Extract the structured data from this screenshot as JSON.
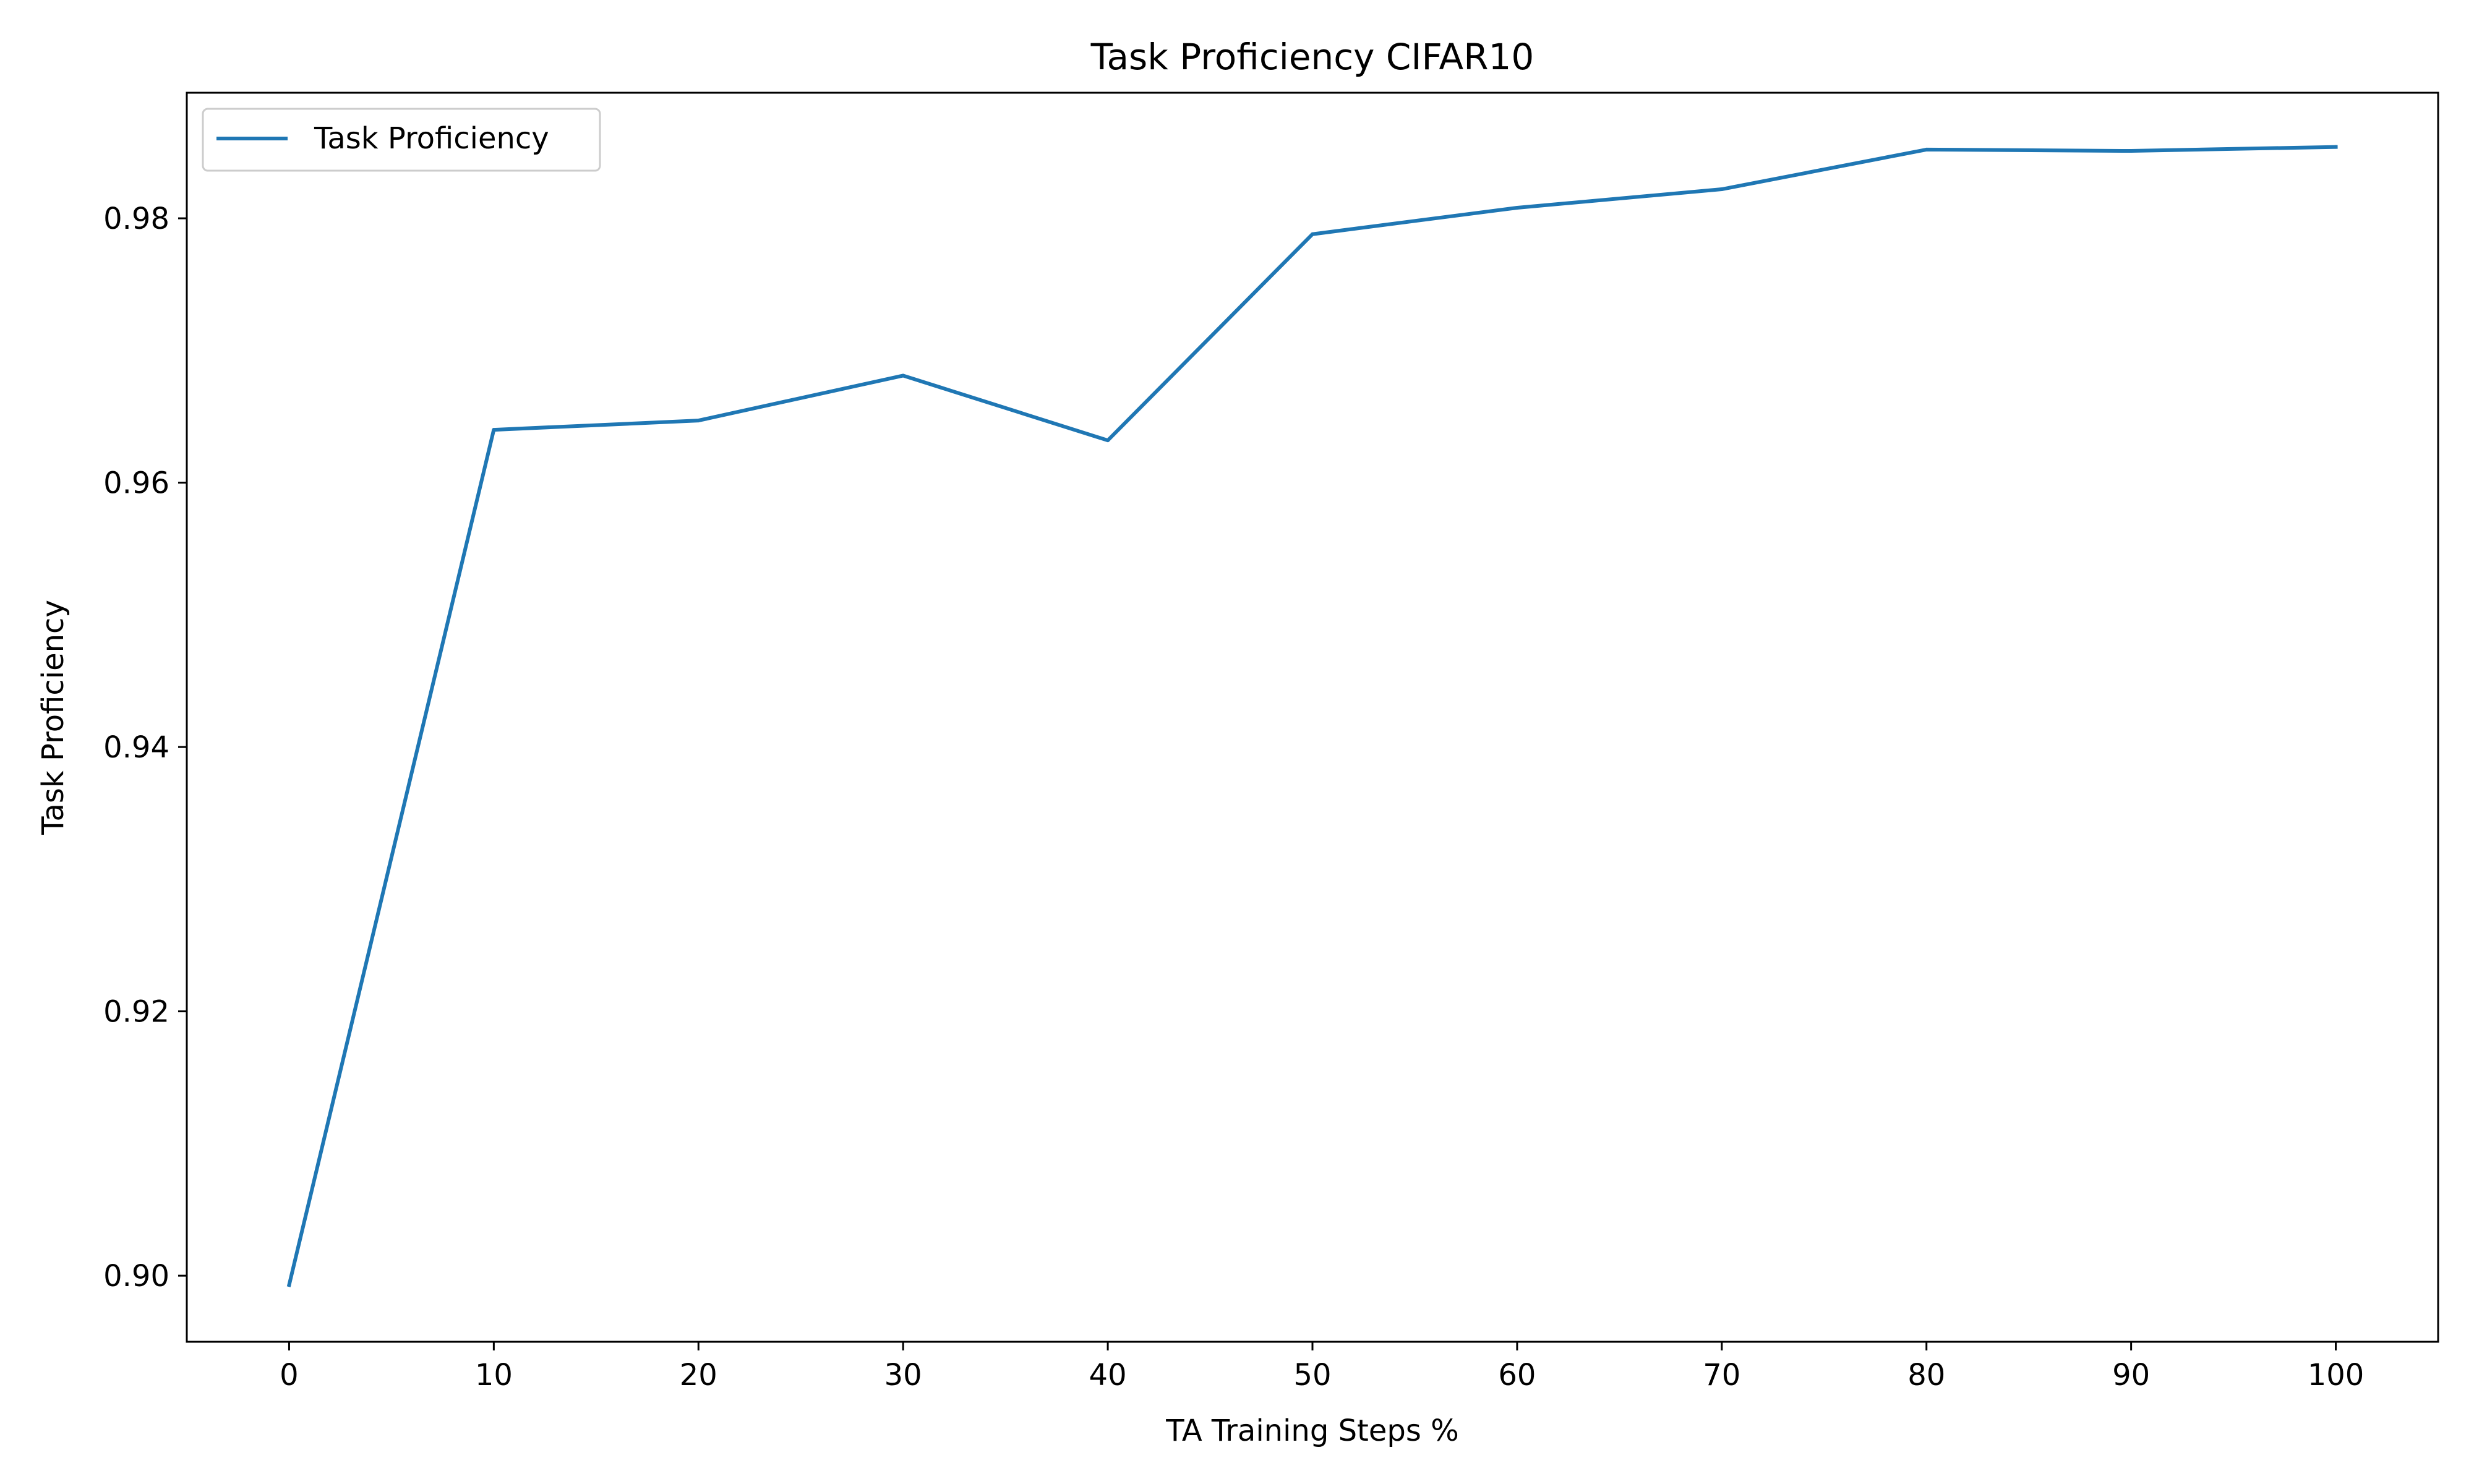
{
  "chart_data": {
    "type": "line",
    "title": "Task Proficiency CIFAR10",
    "xlabel": "TA Training Steps %",
    "ylabel": "Task Proficiency",
    "x": [
      0,
      10,
      20,
      30,
      40,
      50,
      60,
      70,
      80,
      90,
      100
    ],
    "series": [
      {
        "name": "Task Proficiency",
        "color": "#1f77b4",
        "values": [
          0.8993,
          0.964,
          0.9647,
          0.9681,
          0.9632,
          0.9788,
          0.9808,
          0.9822,
          0.9852,
          0.9851,
          0.9854
        ]
      }
    ],
    "xlim": [
      -5,
      105
    ],
    "ylim": [
      0.895,
      0.9895
    ],
    "xticks": [
      "0",
      "10",
      "20",
      "30",
      "40",
      "50",
      "60",
      "70",
      "80",
      "90",
      "100"
    ],
    "yticks": [
      "0.90",
      "0.92",
      "0.94",
      "0.96",
      "0.98"
    ],
    "grid": false,
    "legend_position": "top-left"
  }
}
